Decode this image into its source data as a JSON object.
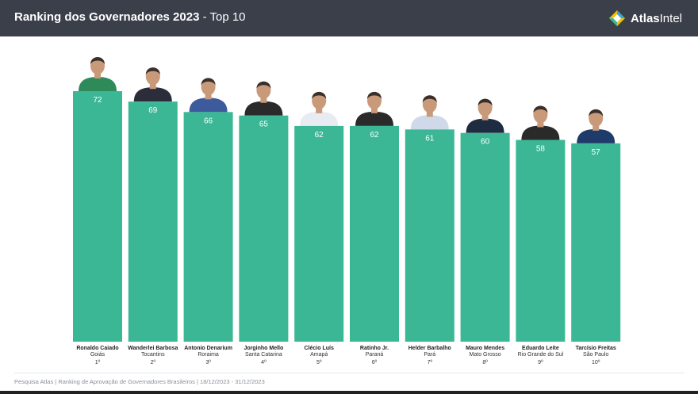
{
  "header": {
    "title": "Ranking dos Governadores 2023",
    "title_sep": " - ",
    "subtitle": "Top 10",
    "brand_bold": "Atlas",
    "brand_light": "Intel"
  },
  "colors": {
    "header_bg": "#3a3f4a",
    "bar": "#3cb795",
    "bar_label": "#ffffff",
    "logo_yellow": "#f2c200",
    "logo_green": "#3cb795",
    "logo_blue": "#3aa7d9"
  },
  "chart_data": {
    "type": "bar",
    "title": "Ranking dos Governadores 2023 - Top 10",
    "xlabel": "",
    "ylabel": "",
    "ylim": [
      0,
      72
    ],
    "grid": false,
    "legend": "none",
    "categories": [
      "Ronaldo Caiado",
      "Wanderlei Barbosa",
      "Antonio Denarium",
      "Jorginho Mello",
      "Clécio Luís",
      "Ratinho Jr.",
      "Helder Barbalho",
      "Mauro Mendes",
      "Eduardo Leite",
      "Tarcísio Freitas"
    ],
    "states": [
      "Goiás",
      "Tocantins",
      "Roraima",
      "Santa Catarina",
      "Amapá",
      "Paraná",
      "Pará",
      "Mato Grosso",
      "Rio Grande do Sul",
      "São Paulo"
    ],
    "ranks": [
      "1º",
      "2º",
      "3º",
      "4º",
      "5º",
      "6º",
      "7º",
      "8º",
      "9º",
      "10º"
    ],
    "values": [
      72,
      69,
      66,
      65,
      62,
      62,
      61,
      60,
      58,
      57
    ],
    "portrait_icons": [
      "portrait-icon",
      "portrait-icon",
      "portrait-icon",
      "portrait-icon",
      "portrait-icon",
      "portrait-icon",
      "portrait-icon",
      "portrait-icon",
      "portrait-icon",
      "portrait-icon"
    ]
  },
  "footer": {
    "text": "Pesquisa Atlas  |  Ranking de Aprovação de Governadores Brasileiros  |  18/12/2023 - 31/12/2023"
  }
}
